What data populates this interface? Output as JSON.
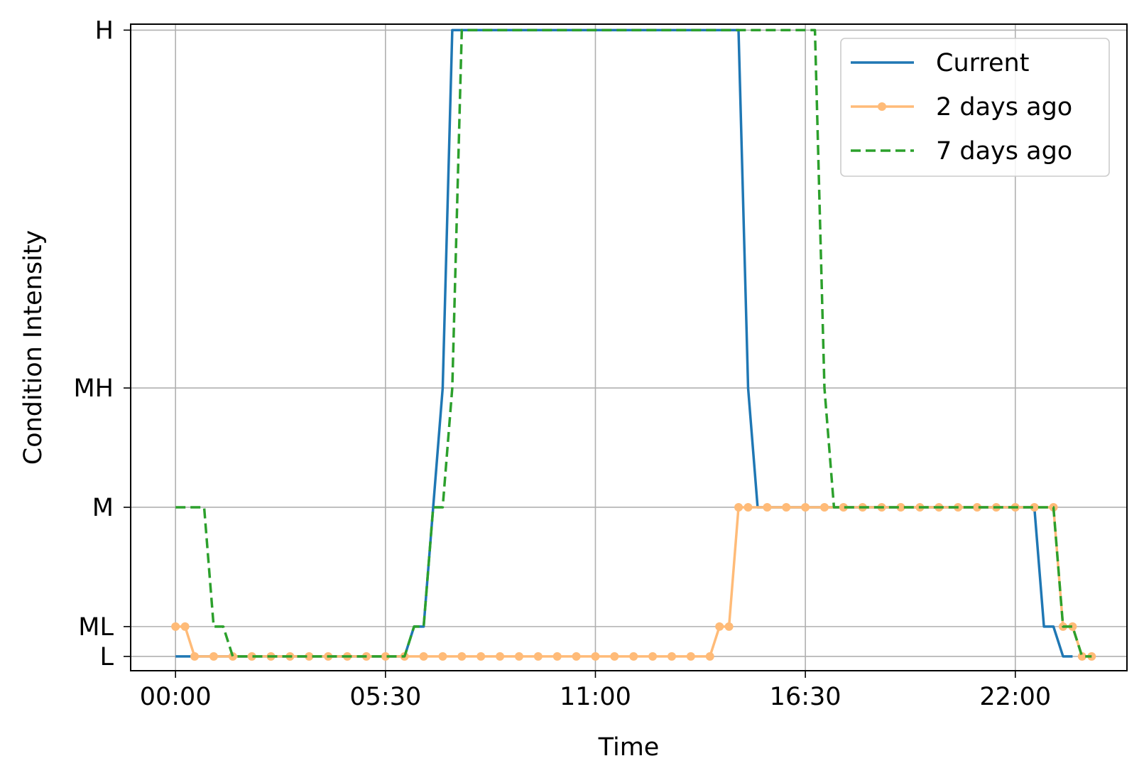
{
  "chart_data": {
    "type": "line",
    "title": "",
    "xlabel": "Time",
    "ylabel": "Condition Intensity",
    "x_unit": "hours",
    "xlim": [
      -2.35,
      49.85
    ],
    "ylim": [
      -0.12,
      5.3
    ],
    "x_ticks": [
      {
        "value": 0,
        "label": "00:00"
      },
      {
        "value": 11,
        "label": "05:30"
      },
      {
        "value": 22,
        "label": "11:00"
      },
      {
        "value": 33,
        "label": "16:30"
      },
      {
        "value": 44,
        "label": "22:00"
      }
    ],
    "y_ticks": [
      {
        "value": 0,
        "label": "L"
      },
      {
        "value": 0.25,
        "label": "ML"
      },
      {
        "value": 1.25,
        "label": "M"
      },
      {
        "value": 2.25,
        "label": "MH"
      },
      {
        "value": 5.25,
        "label": "H"
      }
    ],
    "grid": true,
    "legend_position": "top-right",
    "series": [
      {
        "name": "Current",
        "color": "#1f77b4",
        "style": "solid",
        "marker": "none",
        "x": [
          0,
          1,
          2,
          3,
          4,
          5,
          6,
          7,
          8,
          9,
          10,
          11,
          12,
          12.5,
          13,
          13.5,
          14,
          14.5,
          15,
          15.5,
          16,
          17,
          18,
          19,
          20,
          21,
          22,
          23,
          24,
          25,
          26,
          27,
          28,
          29,
          29.5,
          30,
          30.5,
          31,
          32,
          33,
          34,
          35,
          36,
          37,
          38,
          39,
          40,
          41,
          42,
          43,
          44,
          45,
          45.5,
          46,
          46.5,
          47
        ],
        "y": [
          0,
          0,
          0,
          0,
          0,
          0,
          0,
          0,
          0,
          0,
          0,
          0,
          0,
          0.25,
          0.25,
          1.25,
          2.25,
          5.25,
          5.25,
          5.25,
          5.25,
          5.25,
          5.25,
          5.25,
          5.25,
          5.25,
          5.25,
          5.25,
          5.25,
          5.25,
          5.25,
          5.25,
          5.25,
          5.25,
          5.25,
          2.25,
          1.25,
          1.25,
          1.25,
          1.25,
          1.25,
          1.25,
          1.25,
          1.25,
          1.25,
          1.25,
          1.25,
          1.25,
          1.25,
          1.25,
          1.25,
          1.25,
          0.25,
          0.25,
          0,
          0
        ]
      },
      {
        "name": "2 days ago",
        "color": "#ffbb78",
        "style": "solid",
        "marker": "circle",
        "x": [
          0,
          0.5,
          1,
          2,
          3,
          4,
          5,
          6,
          7,
          8,
          9,
          10,
          11,
          12,
          13,
          14,
          15,
          16,
          17,
          18,
          19,
          20,
          21,
          22,
          23,
          24,
          25,
          26,
          27,
          28,
          28.5,
          29,
          29.5,
          30,
          31,
          32,
          33,
          34,
          35,
          36,
          37,
          38,
          39,
          40,
          41,
          42,
          43,
          44,
          45,
          46,
          46.5,
          47,
          47.5,
          48
        ],
        "y": [
          0.25,
          0.25,
          0,
          0,
          0,
          0,
          0,
          0,
          0,
          0,
          0,
          0,
          0,
          0,
          0,
          0,
          0,
          0,
          0,
          0,
          0,
          0,
          0,
          0,
          0,
          0,
          0,
          0,
          0,
          0,
          0.25,
          0.25,
          1.25,
          1.25,
          1.25,
          1.25,
          1.25,
          1.25,
          1.25,
          1.25,
          1.25,
          1.25,
          1.25,
          1.25,
          1.25,
          1.25,
          1.25,
          1.25,
          1.25,
          1.25,
          0.25,
          0.25,
          0,
          0
        ]
      },
      {
        "name": "7 days ago",
        "color": "#2ca02c",
        "style": "dashed",
        "marker": "none",
        "x": [
          0,
          1,
          1.5,
          2,
          2.5,
          3,
          4,
          5,
          6,
          7,
          8,
          9,
          10,
          11,
          12,
          12.5,
          13,
          13.5,
          14,
          14.5,
          15,
          15.5,
          16,
          17,
          18,
          19,
          20,
          21,
          22,
          23,
          24,
          25,
          26,
          27,
          28,
          29,
          30,
          31,
          32,
          33,
          33.5,
          34,
          34.5,
          35,
          36,
          37,
          38,
          39,
          40,
          41,
          42,
          43,
          44,
          45,
          46,
          46.5,
          47,
          47.5,
          48
        ],
        "y": [
          1.25,
          1.25,
          1.25,
          0.25,
          0.25,
          0,
          0,
          0,
          0,
          0,
          0,
          0,
          0,
          0,
          0,
          0.25,
          0.25,
          1.25,
          1.25,
          2.25,
          5.25,
          5.25,
          5.25,
          5.25,
          5.25,
          5.25,
          5.25,
          5.25,
          5.25,
          5.25,
          5.25,
          5.25,
          5.25,
          5.25,
          5.25,
          5.25,
          5.25,
          5.25,
          5.25,
          5.25,
          5.25,
          2.25,
          1.25,
          1.25,
          1.25,
          1.25,
          1.25,
          1.25,
          1.25,
          1.25,
          1.25,
          1.25,
          1.25,
          1.25,
          1.25,
          0.25,
          0.25,
          0,
          0
        ]
      }
    ]
  }
}
